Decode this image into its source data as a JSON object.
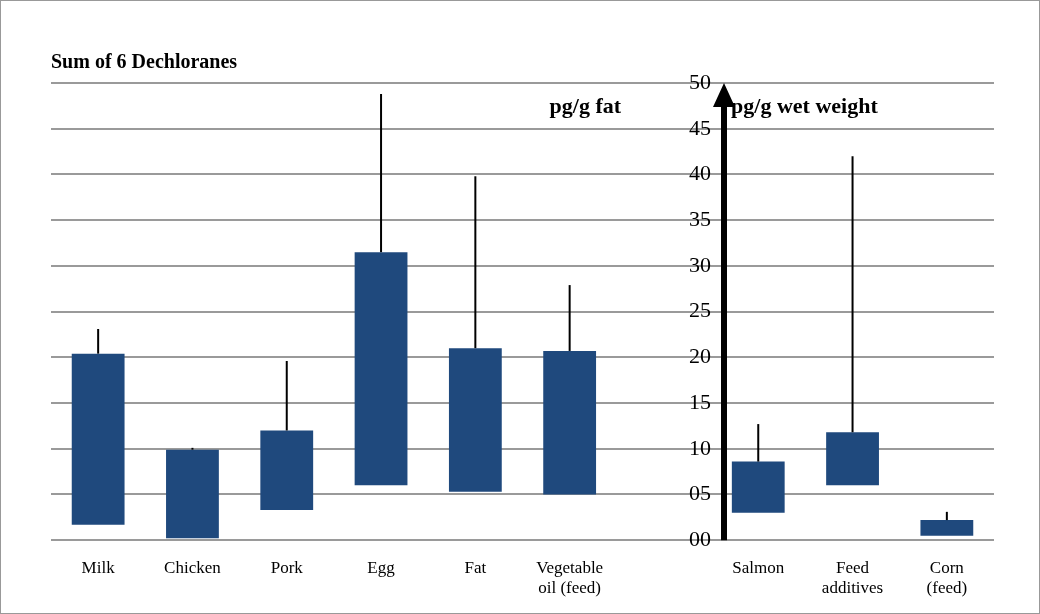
{
  "chart_data": {
    "type": "bar",
    "title": "Sum of 6 Dechloranes",
    "categories": [
      "Milk",
      "Chicken",
      "Pork",
      "Egg",
      "Fat",
      "Vegetable oil (feed)",
      null,
      "Salmon",
      "Feed additives",
      "Corn (feed)"
    ],
    "values": [
      18.7,
      9.7,
      8.7,
      25.5,
      15.7,
      15.7,
      null,
      5.6,
      5.8,
      1.7
    ],
    "base": [
      1.7,
      0.2,
      3.3,
      6.0,
      5.3,
      5.0,
      null,
      3.0,
      6.0,
      0.5
    ],
    "errors": [
      [
        20.4,
        23.1
      ],
      [
        9.9,
        10.1
      ],
      [
        12.0,
        19.6
      ],
      [
        31.5,
        48.8
      ],
      [
        21.0,
        39.8
      ],
      [
        20.7,
        27.9
      ],
      null,
      [
        8.6,
        12.7
      ],
      [
        11.8,
        42.0
      ],
      [
        2.2,
        3.1
      ]
    ],
    "color": "#1f497d",
    "ylim": [
      0,
      50
    ],
    "yticks": [
      {
        "value": 0,
        "label": "00"
      },
      {
        "value": 5,
        "label": "05"
      },
      10,
      15,
      20,
      25,
      30,
      35,
      40,
      45,
      50
    ],
    "grid": "y",
    "annotations": [
      "pg/g fat",
      "pg/g wet weight"
    ]
  }
}
